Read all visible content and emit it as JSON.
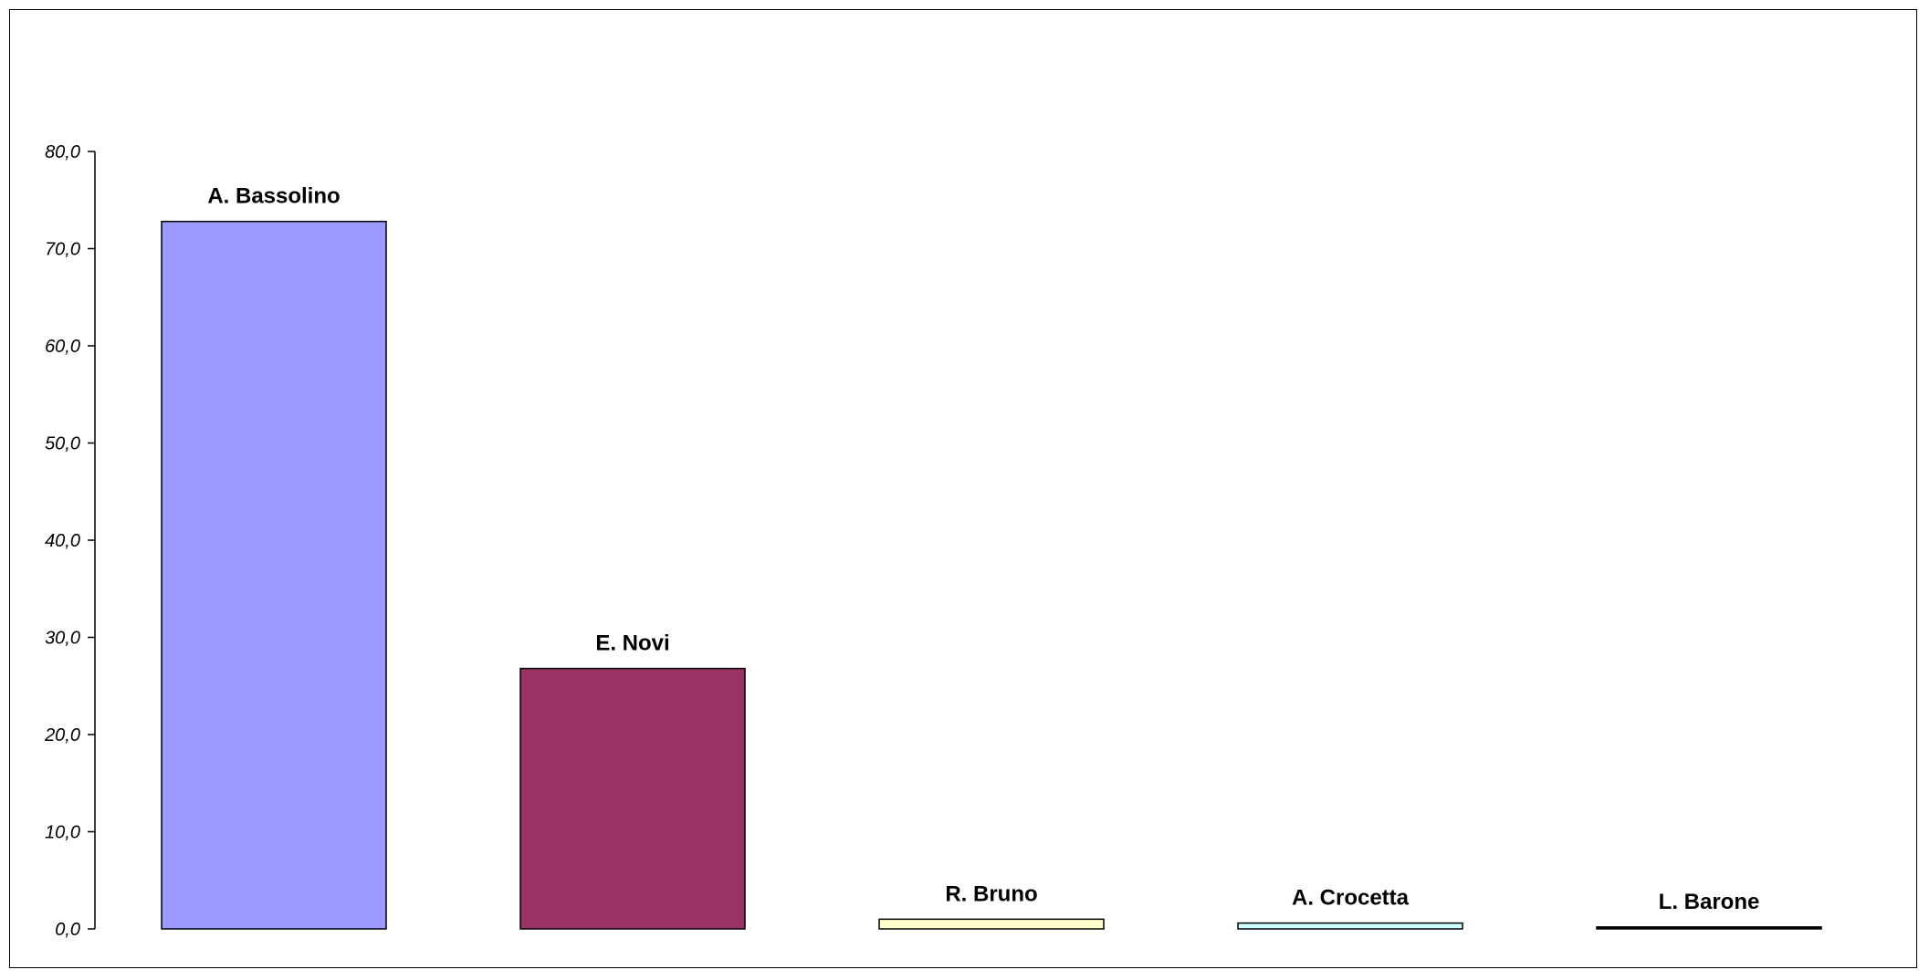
{
  "chart_data": {
    "type": "bar",
    "title": "",
    "xlabel": "",
    "ylabel": "",
    "categories": [
      "A. Bassolino",
      "E. Novi",
      "R. Bruno",
      "A. Crocetta",
      "L. Barone"
    ],
    "values": [
      72.8,
      26.8,
      1.0,
      0.6,
      0.2
    ],
    "colors": [
      "#9999ff",
      "#993366",
      "#ffffcc",
      "#ccffff",
      "#000000"
    ],
    "ylim": [
      0,
      80
    ],
    "y_ticks": [
      0,
      10,
      20,
      30,
      40,
      50,
      60,
      70,
      80
    ],
    "y_tick_labels": [
      "0,0",
      "10,0",
      "20,0",
      "30,0",
      "40,0",
      "50,0",
      "60,0",
      "70,0",
      "80,0"
    ],
    "data_labels": [
      "A. Bassolino",
      "E. Novi",
      "R. Bruno",
      "A. Crocetta",
      "L. Barone"
    ],
    "grid": false,
    "legend": "none",
    "x_axis_line": false
  }
}
